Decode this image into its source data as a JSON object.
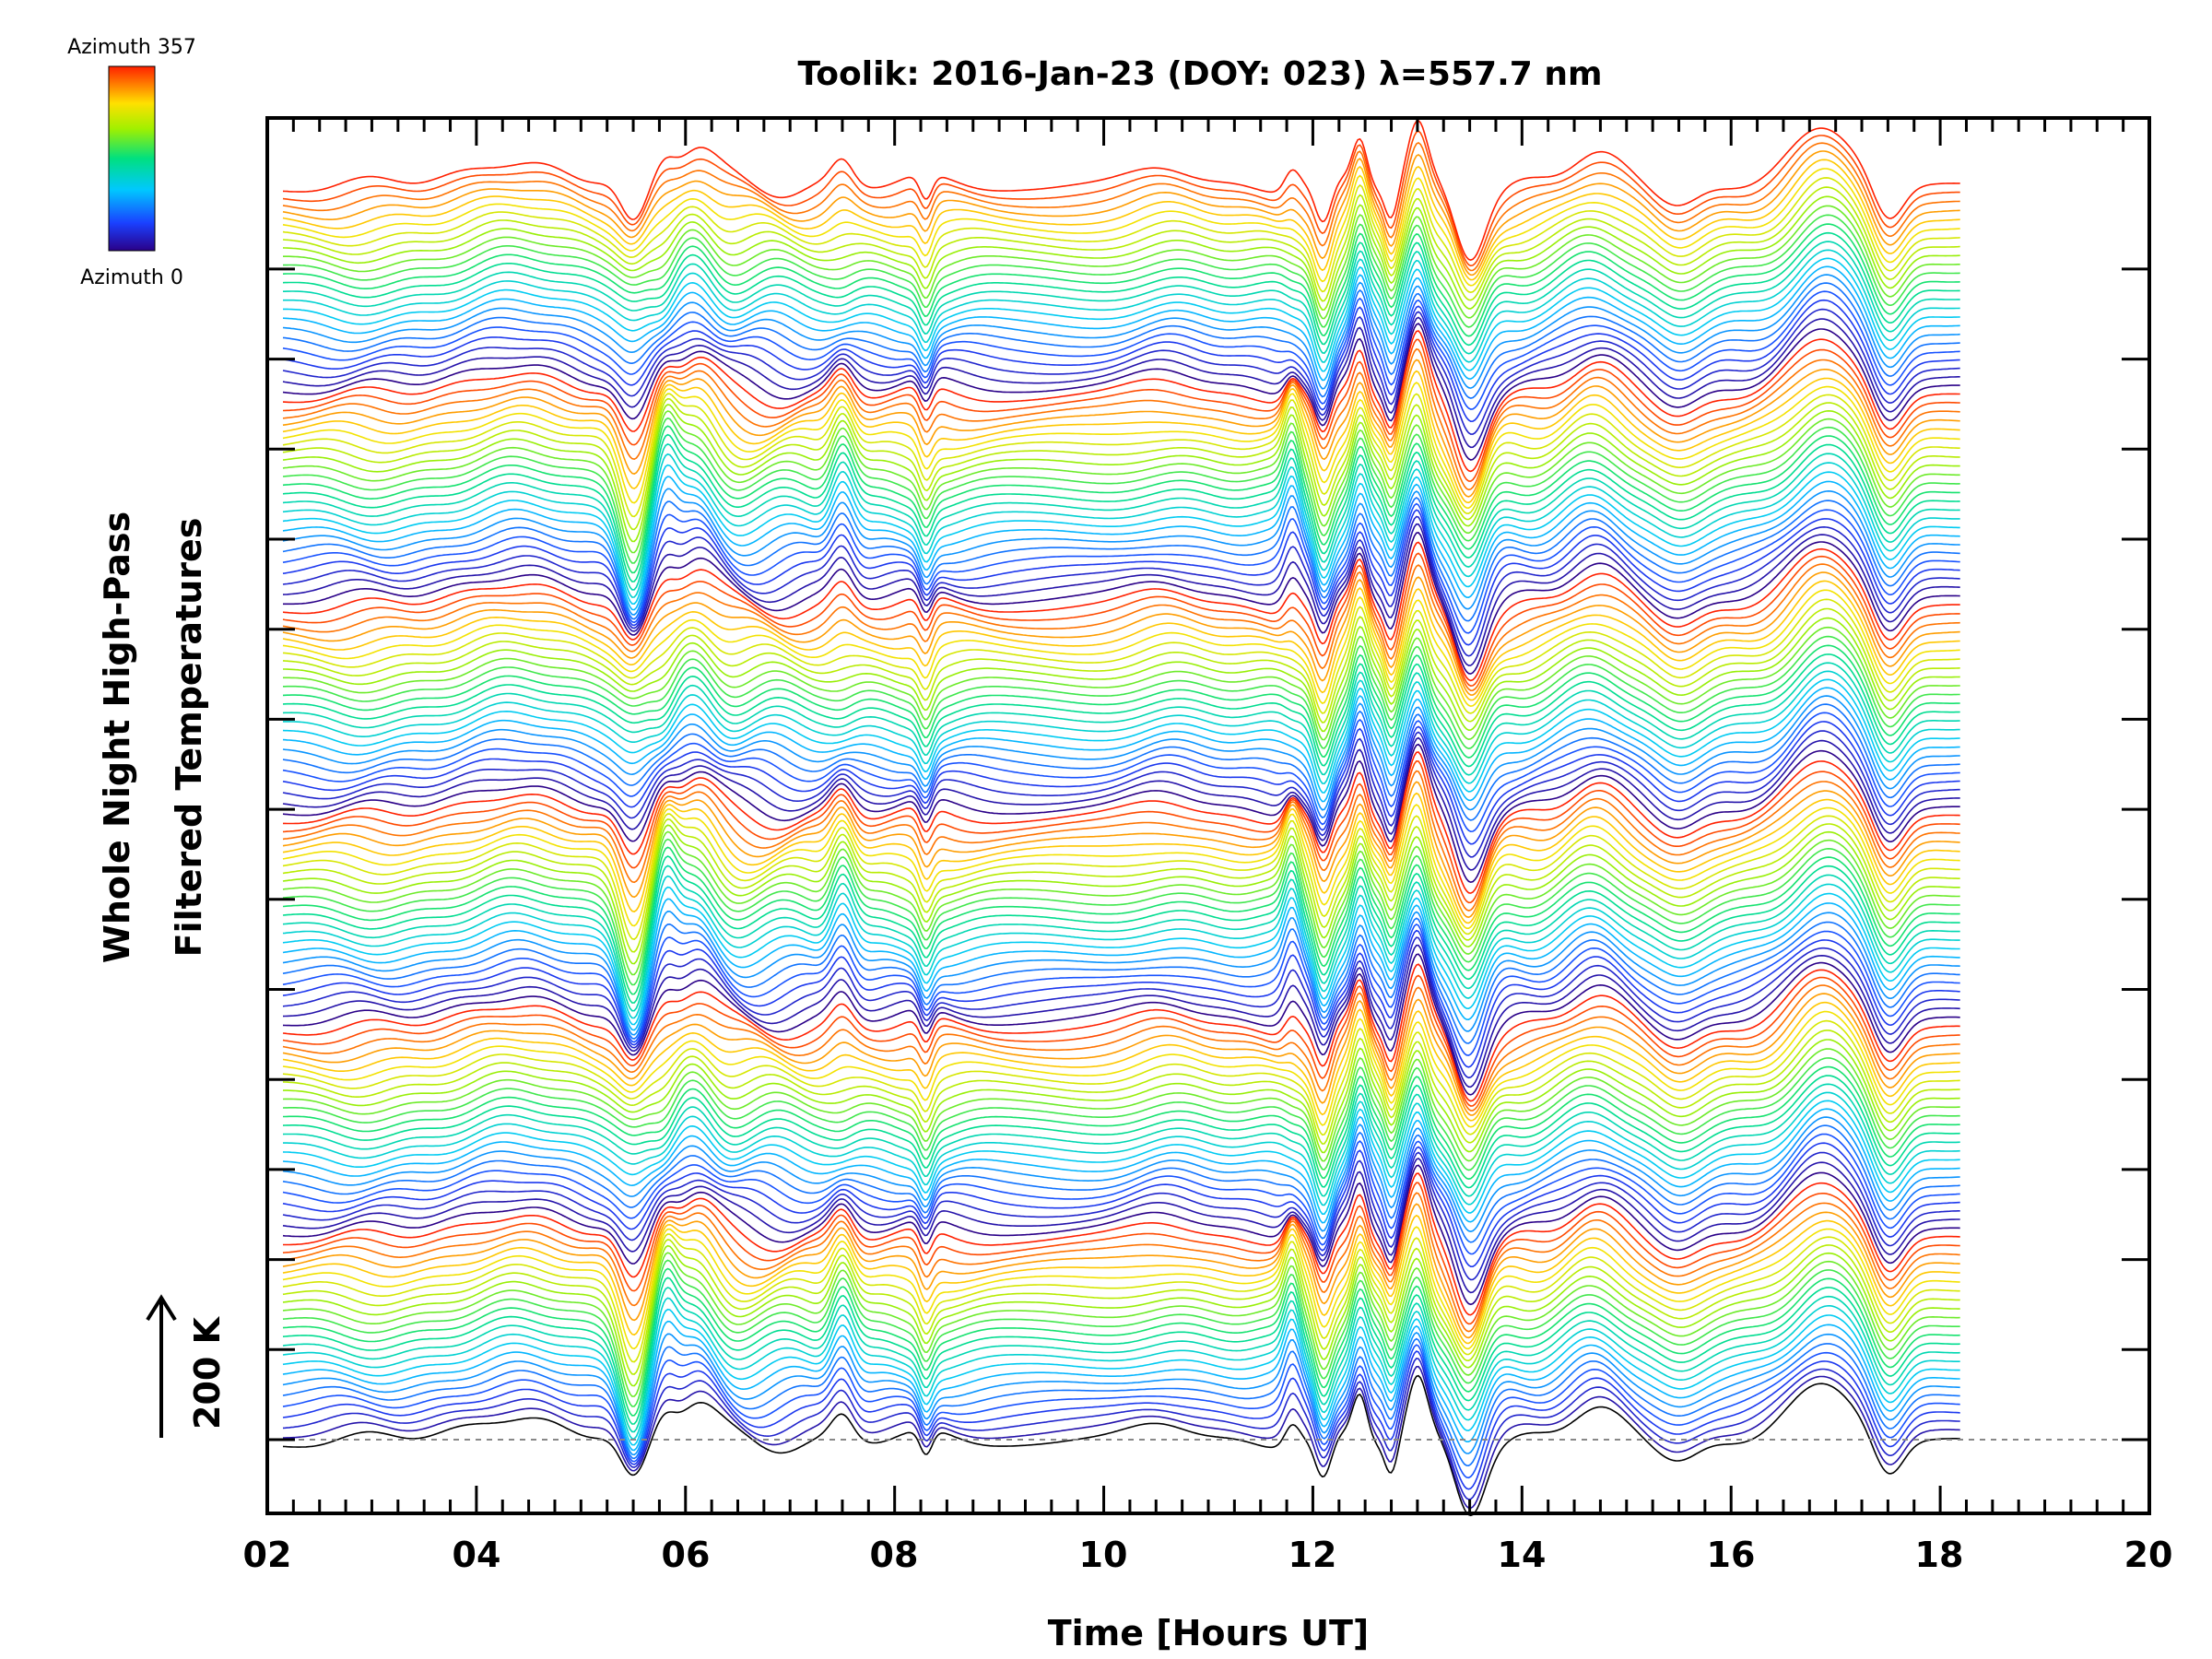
{
  "chart_data": {
    "type": "line",
    "title": "Toolik: 2016-Jan-23 (DOY: 023) λ=557.7 nm",
    "xlabel": "Time [Hours UT]",
    "ylabel_line1": "Whole Night High-Pass",
    "ylabel_line2": "Filtered Temperatures",
    "xlim": [
      2,
      20
    ],
    "x_ticks": [
      "02",
      "04",
      "06",
      "08",
      "10",
      "12",
      "14",
      "16",
      "18",
      "20"
    ],
    "scale_bar_label": "200 K",
    "colorbar": {
      "top_label": "Azimuth 357",
      "bottom_label": "Azimuth 0",
      "colormap": "rainbow"
    },
    "data_range_hours": [
      2.15,
      18.2
    ],
    "n_traces": 144,
    "feature_times_hours": [
      2.6,
      4.4,
      5.5,
      5.8,
      6.1,
      7.5,
      8.3,
      8.5,
      10.6,
      11.8,
      12.1,
      12.45,
      12.75,
      13.0,
      13.5,
      14.7,
      15.5,
      16.5,
      16.9,
      17.5
    ],
    "colors": {
      "baseline": "#888888",
      "axes": "#000000"
    }
  }
}
